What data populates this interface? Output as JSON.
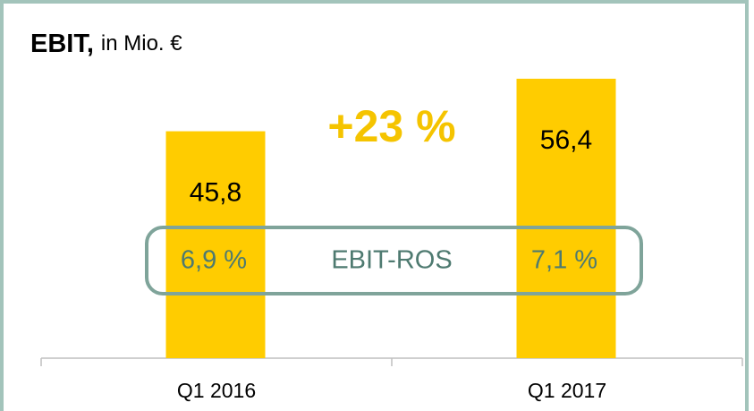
{
  "chart_data": {
    "type": "bar",
    "title": "EBIT,",
    "unit": "in Mio. €",
    "categories": [
      "Q1 2016",
      "Q1 2017"
    ],
    "values": [
      45.8,
      56.4
    ],
    "value_labels": [
      "45,8",
      "56,4"
    ],
    "color": "#ffcc00",
    "ylim": [
      0,
      60
    ],
    "change_label": "+23 %",
    "ros_name": "EBIT-ROS",
    "ros_labels": [
      "6,9 %",
      "7,1 %"
    ]
  }
}
